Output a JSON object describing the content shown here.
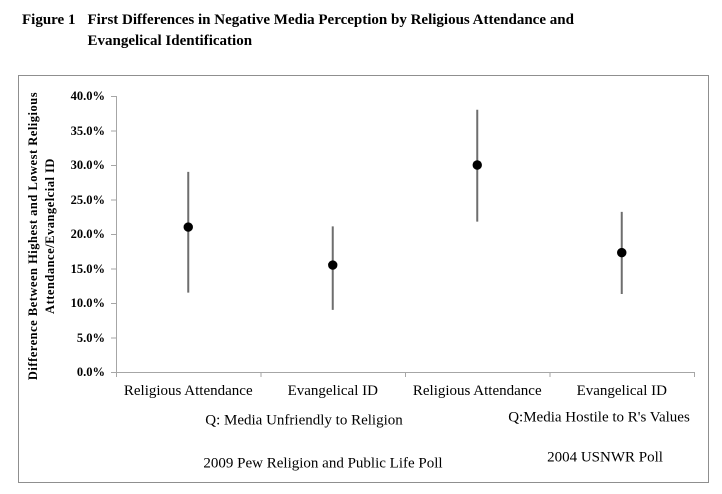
{
  "figure": {
    "label": "Figure 1",
    "title_line1": "First Differences in Negative Media Perception by Religious Attendance and",
    "title_line2": "Evangelical Identification"
  },
  "chart_data": {
    "type": "scatter",
    "description": "Dot plot of first differences with vertical confidence-interval whiskers",
    "ylabel_line1": "Difference Between Highest and Lowest Religious",
    "ylabel_line2": "Attendance/Evangelcial ID",
    "ylim": [
      0,
      40
    ],
    "ytick_step": 5,
    "ytick_labels": [
      "0.0%",
      "5.0%",
      "10.0%",
      "15.0%",
      "20.0%",
      "25.0%",
      "30.0%",
      "35.0%",
      "40.0%"
    ],
    "grid": "off",
    "legend": "none",
    "categories": [
      "Religious Attendance",
      "Evangelical ID",
      "Religious Attendance",
      "Evangelical ID"
    ],
    "points": [
      {
        "category": "Religious Attendance",
        "group": "2009 Pew Religion and Public Life Poll",
        "value": 21.0,
        "ci_low": 11.5,
        "ci_high": 29.0
      },
      {
        "category": "Evangelical ID",
        "group": "2009 Pew Religion and Public Life Poll",
        "value": 15.5,
        "ci_low": 9.0,
        "ci_high": 21.1
      },
      {
        "category": "Religious Attendance",
        "group": "2004 USNWR Poll",
        "value": 30.0,
        "ci_low": 21.8,
        "ci_high": 38.0
      },
      {
        "category": "Evangelical ID",
        "group": "2004 USNWR Poll",
        "value": 17.3,
        "ci_low": 11.3,
        "ci_high": 23.2
      }
    ],
    "group_annotations": [
      {
        "question": "Q: Media Unfriendly to Religion",
        "poll": "2009 Pew Religion and Public Life Poll"
      },
      {
        "question": "Q:Media Hostile to R's Values",
        "poll": "2004 USNWR Poll"
      }
    ],
    "colors": {
      "marker": "#000000",
      "error_bar": "#6e6e6e",
      "axis": "#a6a6a6",
      "border": "#8f8f8f",
      "text": "#000000"
    }
  }
}
